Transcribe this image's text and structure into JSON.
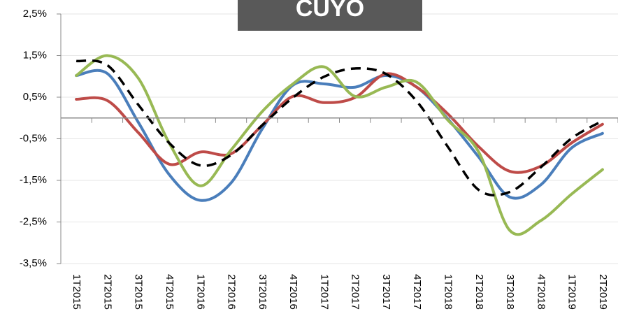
{
  "chart_data": {
    "type": "line",
    "title": "CUYO",
    "categories": [
      "1T2015",
      "2T2015",
      "3T2015",
      "4T2015",
      "1T2016",
      "2T2016",
      "3T2016",
      "4T2016",
      "1T2017",
      "2T2017",
      "3T2017",
      "4T2017",
      "1T2018",
      "2T2018",
      "3T2018",
      "4T2018",
      "1T2019",
      "2T2019"
    ],
    "series": [
      {
        "color": "#4a7ebb",
        "values": [
          1.02,
          1.07,
          -0.1,
          -1.36,
          -1.98,
          -1.56,
          -0.27,
          0.79,
          0.82,
          0.74,
          1.02,
          0.74,
          -0.02,
          -0.94,
          -1.9,
          -1.61,
          -0.72,
          -0.37
        ]
      },
      {
        "color": "#be4b48",
        "values": [
          0.45,
          0.42,
          -0.35,
          -1.11,
          -0.82,
          -0.86,
          -0.18,
          0.52,
          0.37,
          0.49,
          1.06,
          0.74,
          0.1,
          -0.69,
          -1.28,
          -1.16,
          -0.6,
          -0.15
        ]
      },
      {
        "color": "#98b954",
        "values": [
          1.02,
          1.5,
          0.96,
          -0.6,
          -1.63,
          -0.77,
          0.15,
          0.82,
          1.23,
          0.52,
          0.74,
          0.86,
          -0.05,
          -0.82,
          -2.7,
          -2.47,
          -1.83,
          -1.24
        ]
      },
      {
        "color": "#000000",
        "dashed": true,
        "values": [
          1.37,
          1.27,
          0.32,
          -0.6,
          -1.14,
          -0.89,
          -0.18,
          0.49,
          0.99,
          1.19,
          1.06,
          0.4,
          -0.69,
          -1.73,
          -1.78,
          -1.19,
          -0.49,
          -0.07
        ]
      }
    ],
    "ylim": [
      -3.5,
      2.5
    ],
    "yticks": [
      {
        "value": 2.5,
        "label": "2,5%"
      },
      {
        "value": 1.5,
        "label": "1,5%"
      },
      {
        "value": 0.5,
        "label": "0,5%"
      },
      {
        "value": -0.5,
        "label": "-0,5%"
      },
      {
        "value": -1.5,
        "label": "-1,5%"
      },
      {
        "value": -2.5,
        "label": "-2,5%"
      },
      {
        "value": -3.5,
        "label": "-3,5%"
      }
    ],
    "grid": true
  }
}
